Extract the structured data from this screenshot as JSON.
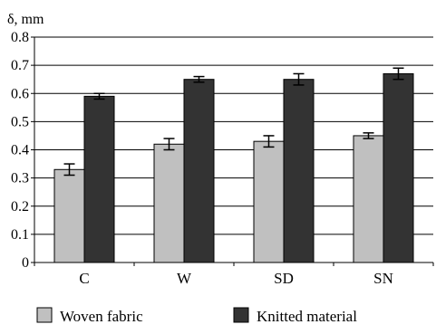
{
  "chart_data": {
    "type": "bar",
    "title": "",
    "xlabel": "",
    "ylabel": "δ, mm",
    "ylim": [
      0,
      0.8
    ],
    "yticks": [
      "0",
      "0.1",
      "0.2",
      "0.3",
      "0.4",
      "0.5",
      "0.6",
      "0.7",
      "0.8"
    ],
    "categories": [
      "C",
      "W",
      "SD",
      "SN"
    ],
    "series": [
      {
        "name": "Woven fabric",
        "values": [
          0.33,
          0.42,
          0.43,
          0.45
        ],
        "errors": [
          0.02,
          0.02,
          0.02,
          0.01
        ],
        "color": "#c0c0c0"
      },
      {
        "name": "Knitted material",
        "values": [
          0.59,
          0.65,
          0.65,
          0.67
        ],
        "errors": [
          0.01,
          0.01,
          0.02,
          0.02
        ],
        "color": "#333333"
      }
    ],
    "grid": true,
    "legend_position": "bottom"
  }
}
